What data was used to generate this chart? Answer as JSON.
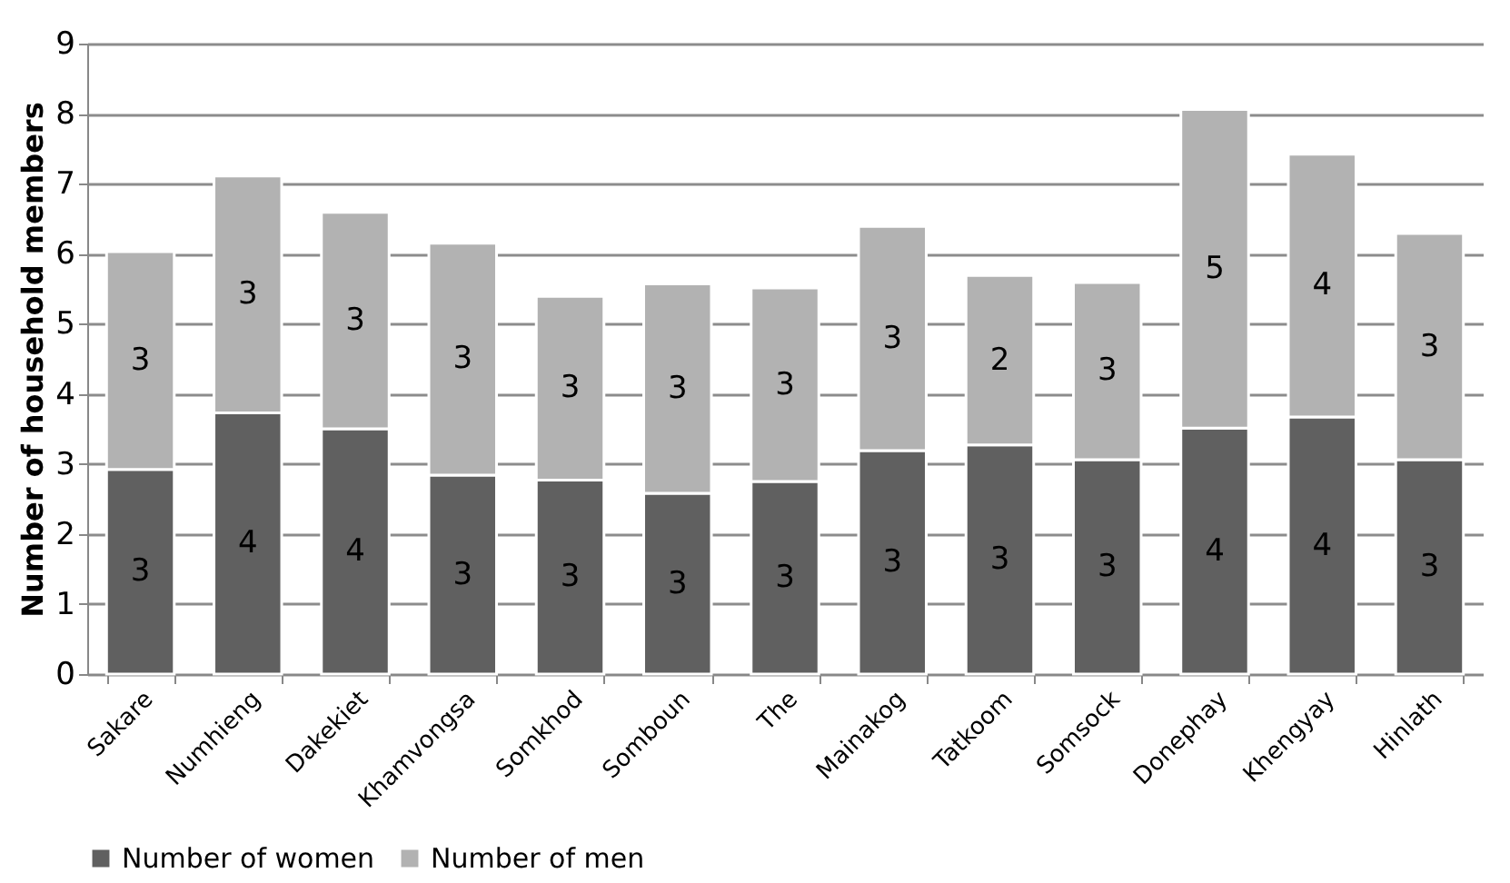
{
  "chart_data": {
    "type": "bar",
    "stacked": true,
    "ylabel": "Number of household members",
    "categories": [
      "Sakare",
      "Numhieng",
      "Dakekiet",
      "Khamvongsa",
      "Somkhod",
      "Somboun",
      "The",
      "Mainakog",
      "Tatkoom",
      "Somsock",
      "Donephay",
      "Khengyay",
      "Hinlath"
    ],
    "series": [
      {
        "name": "Number of women",
        "color": "#606060",
        "values": [
          2.92,
          3.73,
          3.5,
          2.84,
          2.77,
          2.58,
          2.75,
          3.19,
          3.27,
          3.06,
          3.51,
          3.67,
          3.06
        ],
        "value_labels": [
          "3",
          "4",
          "4",
          "3",
          "3",
          "3",
          "3",
          "3",
          "3",
          "3",
          "4",
          "4",
          "3"
        ]
      },
      {
        "name": "Number of men",
        "color": "#b2b2b2",
        "values": [
          3.11,
          3.38,
          3.09,
          3.31,
          2.62,
          2.99,
          2.76,
          3.2,
          2.42,
          2.53,
          4.55,
          3.75,
          3.23
        ],
        "value_labels": [
          "3",
          "3",
          "3",
          "3",
          "3",
          "3",
          "3",
          "3",
          "2",
          "3",
          "5",
          "4",
          "3"
        ]
      }
    ],
    "ylim": [
      0,
      9
    ],
    "yticks": [
      0,
      1,
      2,
      3,
      4,
      5,
      6,
      7,
      8,
      9
    ],
    "grid": "y",
    "legend": "bottom"
  }
}
